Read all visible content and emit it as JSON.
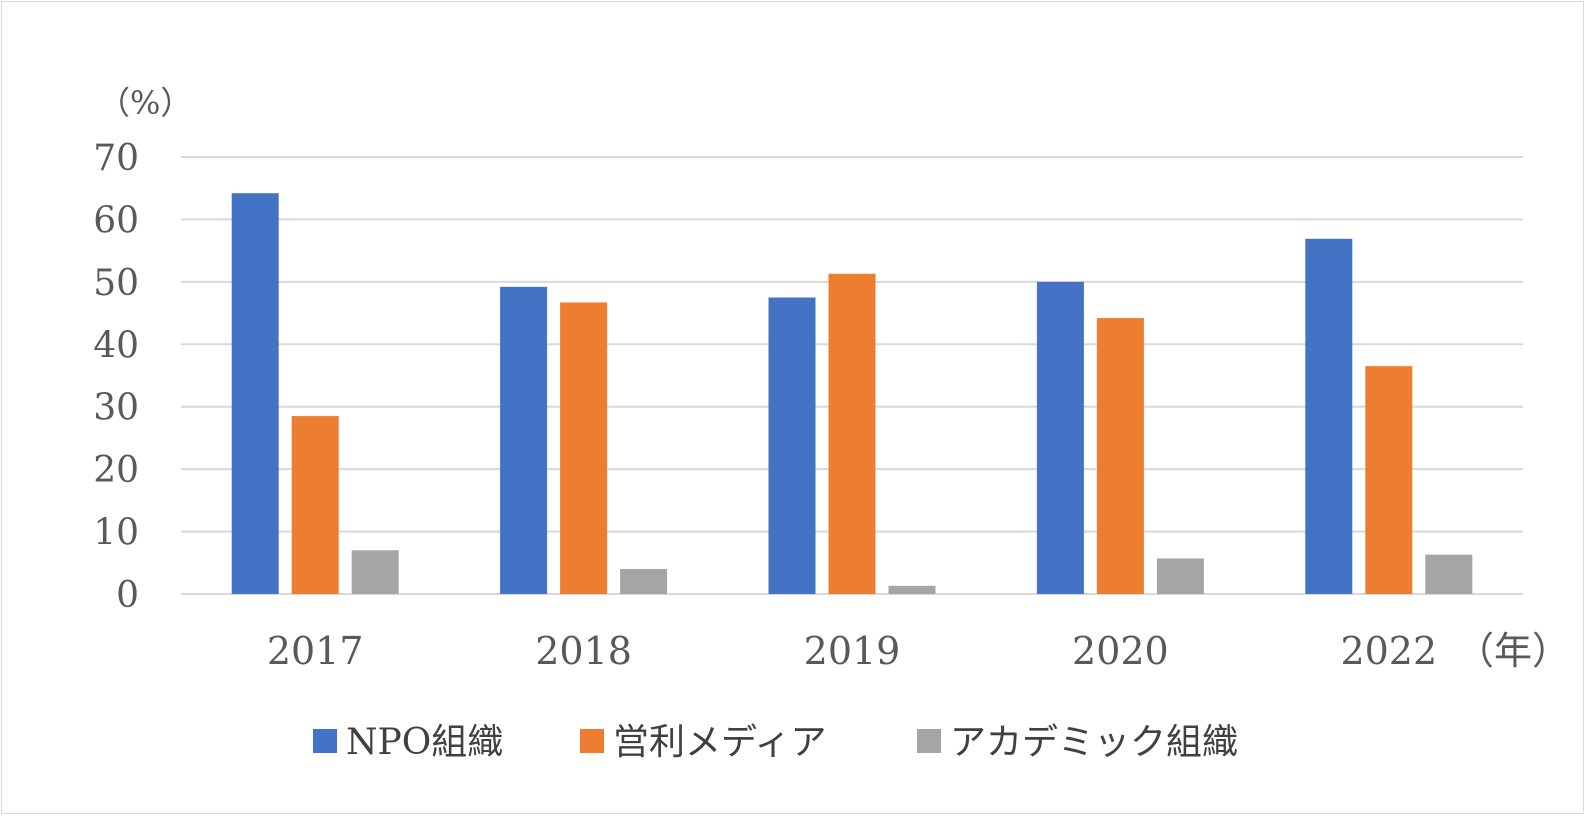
{
  "chart_data": {
    "type": "bar",
    "categories": [
      "2017",
      "2018",
      "2019",
      "2020",
      "2022"
    ],
    "series": [
      {
        "name": "NPO組織",
        "color": "#4472c4",
        "values": [
          64.2,
          49.2,
          47.5,
          50.0,
          56.9
        ]
      },
      {
        "name": "営利メディア",
        "color": "#ed7d31",
        "values": [
          28.5,
          46.7,
          51.3,
          44.2,
          36.5
        ]
      },
      {
        "name": "アカデミック組織",
        "color": "#a5a5a5",
        "values": [
          7.0,
          4.0,
          1.3,
          5.7,
          6.3
        ]
      }
    ],
    "yticks": [
      "0",
      "10",
      "20",
      "30",
      "40",
      "50",
      "60",
      "70"
    ],
    "ylim": [
      0,
      70
    ],
    "ylabel": "（%）",
    "xlabel": "（年）",
    "grid": true,
    "legend_position": "bottom"
  }
}
